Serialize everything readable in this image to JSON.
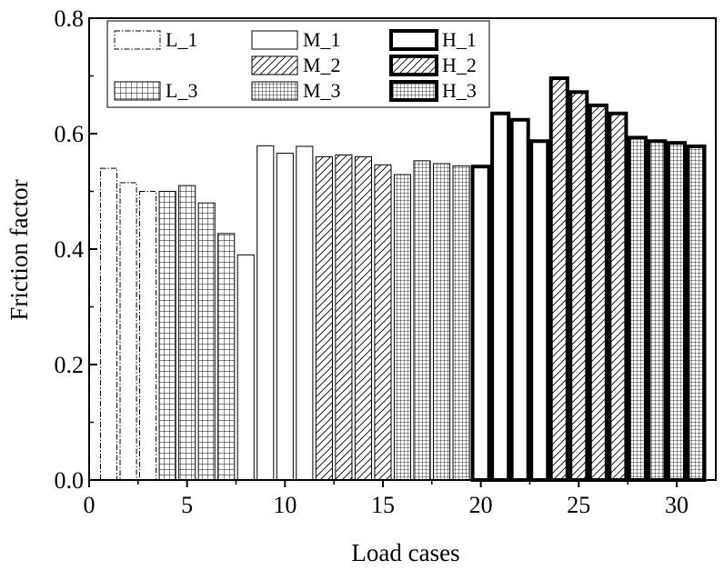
{
  "chart_data": {
    "type": "bar",
    "title": "",
    "xlabel": "Load cases",
    "ylabel": "Friction factor",
    "xlim": [
      0,
      32
    ],
    "ylim": [
      0,
      0.8
    ],
    "xticks": [
      "0",
      "5",
      "10",
      "15",
      "20",
      "25",
      "30"
    ],
    "yticks": [
      "0.0",
      "0.2",
      "0.4",
      "0.6",
      "0.8"
    ],
    "grid": false,
    "legend_position": "top",
    "series": [
      {
        "name": "L_1",
        "style": "dashdot",
        "x": [
          1,
          2,
          3
        ],
        "values": [
          0.54,
          0.515,
          0.5
        ]
      },
      {
        "name": "L_3",
        "style": "grid-light",
        "x": [
          4,
          5,
          6,
          7
        ],
        "values": [
          0.5,
          0.51,
          0.48,
          0.427
        ]
      },
      {
        "name": "M_1",
        "style": "plain",
        "x": [
          8,
          9,
          10,
          11
        ],
        "values": [
          0.39,
          0.579,
          0.566,
          0.578
        ]
      },
      {
        "name": "M_2",
        "style": "hatch",
        "x": [
          12,
          13,
          14,
          15
        ],
        "values": [
          0.56,
          0.563,
          0.56,
          0.546
        ]
      },
      {
        "name": "M_3",
        "style": "grid-dense",
        "x": [
          16,
          17,
          18,
          19
        ],
        "values": [
          0.529,
          0.553,
          0.548,
          0.544
        ]
      },
      {
        "name": "H_1",
        "style": "thick",
        "x": [
          20,
          21,
          22,
          23
        ],
        "values": [
          0.543,
          0.635,
          0.624,
          0.587
        ]
      },
      {
        "name": "H_2",
        "style": "thick-hatch",
        "x": [
          24,
          25,
          26,
          27
        ],
        "values": [
          0.696,
          0.672,
          0.649,
          0.635
        ]
      },
      {
        "name": "H_3",
        "style": "thick-grid",
        "x": [
          28,
          29,
          30,
          31
        ],
        "values": [
          0.593,
          0.587,
          0.584,
          0.578
        ]
      }
    ],
    "legend_order": [
      "L_1",
      "M_1",
      "H_1",
      "",
      "M_2",
      "H_2",
      "L_3",
      "M_3",
      "H_3"
    ]
  }
}
